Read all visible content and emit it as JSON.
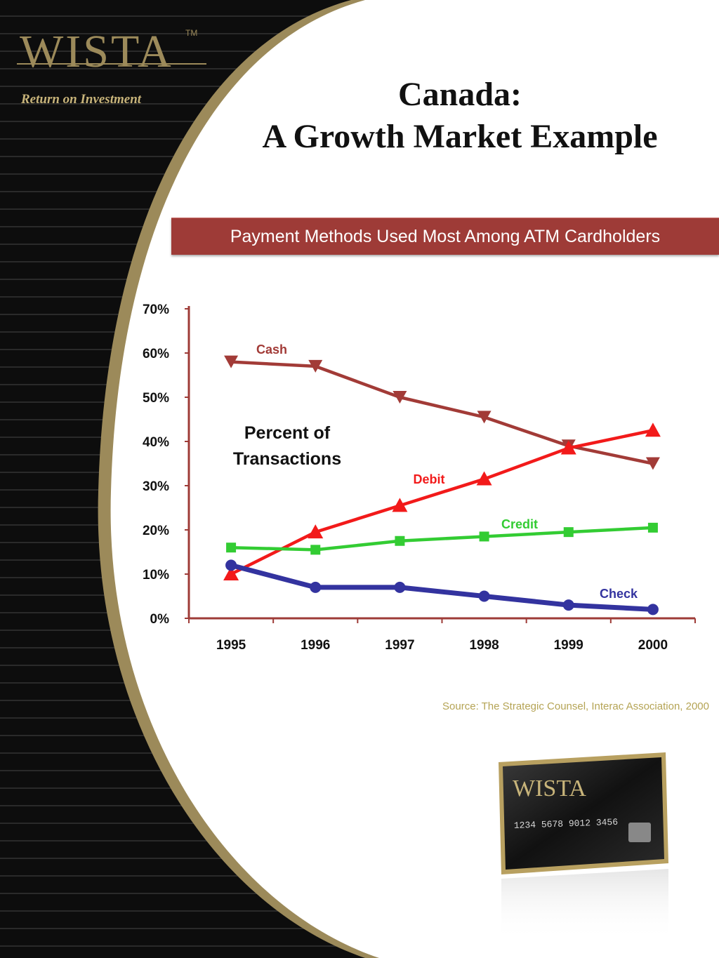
{
  "brand": {
    "logo_text": "WISTA",
    "tagline": "Return on Investment"
  },
  "title": {
    "line1": "Canada:",
    "line2": "A Growth Market Example"
  },
  "banner": {
    "text": "Payment Methods Used Most Among ATM Cardholders"
  },
  "source": "Source: The Strategic Counsel, Interac Association, 2000",
  "card": {
    "number": "1234 5678 9012 3456",
    "logo_text": "WISTA"
  },
  "colors": {
    "accent_gold": "#9c8a5a",
    "banner": "#9e3b37",
    "axis": "#9e3b37",
    "cash": "#a23b37",
    "debit": "#f21a1a",
    "credit": "#33cc33",
    "check": "#33339f",
    "source_text": "#b5a455"
  },
  "chart_data": {
    "type": "line",
    "x": [
      "1995",
      "1996",
      "1997",
      "1998",
      "1999",
      "2000"
    ],
    "ylim": [
      0,
      70
    ],
    "yticks": [
      "0%",
      "10%",
      "20%",
      "30%",
      "40%",
      "50%",
      "60%",
      "70%"
    ],
    "annotation": "Percent of Transactions",
    "grid": false,
    "series": [
      {
        "name": "Cash",
        "values": [
          58,
          57,
          50,
          45.5,
          39,
          35
        ],
        "marker": "triangle-down",
        "color": "#a23b37"
      },
      {
        "name": "Debit",
        "values": [
          10,
          19.5,
          25.5,
          31.5,
          38.5,
          42.5
        ],
        "marker": "triangle-up",
        "color": "#f21a1a"
      },
      {
        "name": "Credit",
        "values": [
          16,
          15.5,
          17.5,
          18.5,
          19.5,
          20.5
        ],
        "marker": "square",
        "color": "#33cc33"
      },
      {
        "name": "Check",
        "values": [
          12,
          7,
          7,
          5,
          3,
          2
        ],
        "marker": "circle",
        "color": "#33339f"
      }
    ]
  }
}
